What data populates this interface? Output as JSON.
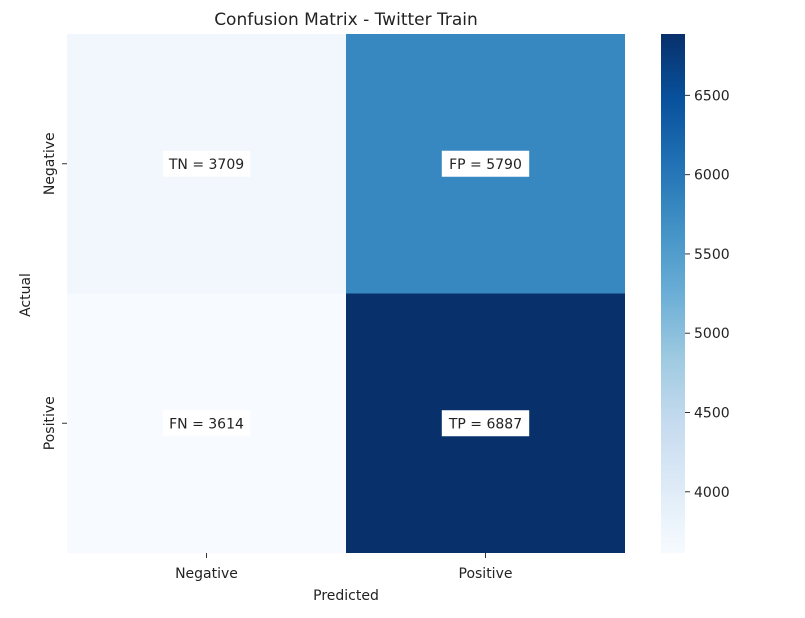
{
  "chart_data": {
    "type": "heatmap",
    "title": "Confusion Matrix - Twitter Train",
    "xlabel": "Predicted",
    "ylabel": "Actual",
    "x_categories": [
      "Negative",
      "Positive"
    ],
    "y_categories": [
      "Negative",
      "Positive"
    ],
    "values": [
      [
        3709,
        5790
      ],
      [
        3614,
        6887
      ]
    ],
    "cell_labels": [
      [
        "TN = 3709",
        "FP = 5790"
      ],
      [
        "FN = 3614",
        "TP = 6887"
      ]
    ],
    "colorbar": {
      "min": 3614,
      "max": 6887,
      "ticks": [
        4000,
        4500,
        5000,
        5500,
        6000,
        6500
      ],
      "tick_labels": [
        "4000",
        "4500",
        "5000",
        "5500",
        "6000",
        "6500"
      ]
    },
    "colormap": "Blues"
  }
}
